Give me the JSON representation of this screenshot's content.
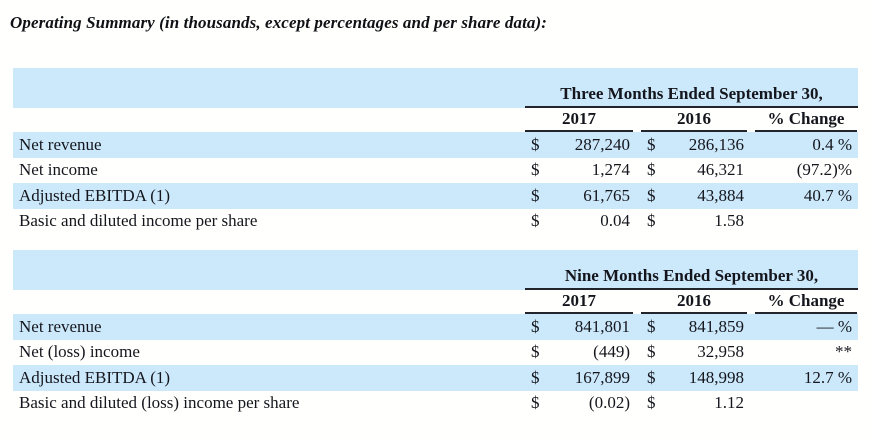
{
  "page": {
    "title": "Operating Summary (in thousands, except percentages and per share data):"
  },
  "symbols": {
    "dollar": "$"
  },
  "columns": {
    "y2017": "2017",
    "y2016": "2016",
    "change": "% Change"
  },
  "colors": {
    "row_highlight": "#cce9fb",
    "rule": "#23252c",
    "text": "#15161d",
    "background": "#ffffff"
  },
  "tables": [
    {
      "period_header": "Three Months Ended September 30,",
      "rows": [
        {
          "label": "Net revenue",
          "v2017": "287,240",
          "v2016": "286,136",
          "change": "0.4 %"
        },
        {
          "label": "Net income",
          "v2017": "1,274",
          "v2016": "46,321",
          "change": "(97.2)%"
        },
        {
          "label": "Adjusted EBITDA (1)",
          "v2017": "61,765",
          "v2016": "43,884",
          "change": "40.7 %"
        },
        {
          "label": "Basic and diluted income per share",
          "v2017": "0.04",
          "v2016": "1.58",
          "change": ""
        }
      ]
    },
    {
      "period_header": "Nine Months Ended September 30,",
      "rows": [
        {
          "label": "Net revenue",
          "v2017": "841,801",
          "v2016": "841,859",
          "change": "— %"
        },
        {
          "label": "Net (loss) income",
          "v2017": "(449)",
          "v2016": "32,958",
          "change": "**"
        },
        {
          "label": "Adjusted EBITDA (1)",
          "v2017": "167,899",
          "v2016": "148,998",
          "change": "12.7 %"
        },
        {
          "label": "Basic and diluted (loss) income per share",
          "v2017": "(0.02)",
          "v2016": "1.12",
          "change": ""
        }
      ]
    }
  ]
}
